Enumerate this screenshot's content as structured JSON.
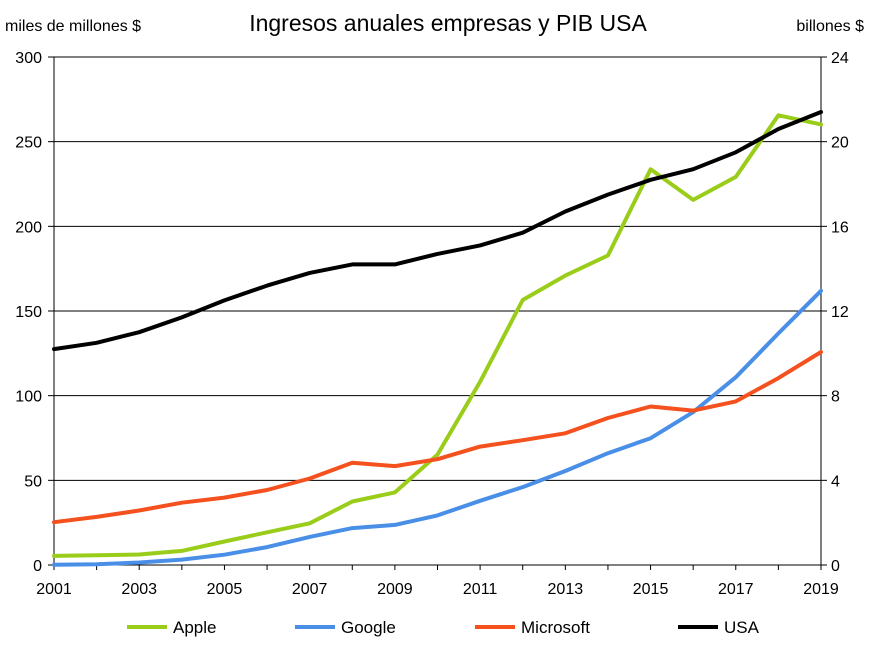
{
  "chart_data": {
    "type": "line",
    "title": "Ingresos anuales empresas y PIB USA",
    "y_left_label": "miles de millones $",
    "y_right_label": "billones $",
    "x": [
      2001,
      2002,
      2003,
      2004,
      2005,
      2006,
      2007,
      2008,
      2009,
      2010,
      2011,
      2012,
      2013,
      2014,
      2015,
      2016,
      2017,
      2018,
      2019
    ],
    "x_ticks": [
      "2001",
      "2003",
      "2005",
      "2007",
      "2009",
      "2011",
      "2013",
      "2015",
      "2017",
      "2019"
    ],
    "y_left_ticks": [
      "0",
      "50",
      "100",
      "150",
      "200",
      "250",
      "300"
    ],
    "y_right_ticks": [
      "0",
      "4",
      "8",
      "12",
      "16",
      "20",
      "24"
    ],
    "xlim": [
      2001,
      2019
    ],
    "ylim_left": [
      0,
      300
    ],
    "ylim_right": [
      0,
      24
    ],
    "grid": "horizontal",
    "legend_position": "bottom",
    "series": [
      {
        "name": "Apple",
        "axis": "left",
        "color": "#9ACD1A",
        "values": [
          5.4,
          5.7,
          6.2,
          8.3,
          13.9,
          19.3,
          24.6,
          37.5,
          42.9,
          65.2,
          108.2,
          156.5,
          170.9,
          182.8,
          233.7,
          215.6,
          229.2,
          265.6,
          260.2
        ]
      },
      {
        "name": "Google",
        "axis": "left",
        "color": "#4A8FE7",
        "values": [
          0.1,
          0.4,
          1.5,
          3.2,
          6.1,
          10.6,
          16.6,
          21.8,
          23.7,
          29.3,
          37.9,
          46.0,
          55.5,
          66.0,
          74.9,
          90.3,
          110.9,
          136.8,
          161.9
        ]
      },
      {
        "name": "Microsoft",
        "axis": "left",
        "color": "#F4511E",
        "values": [
          25.3,
          28.4,
          32.2,
          36.8,
          39.8,
          44.3,
          51.1,
          60.4,
          58.4,
          62.5,
          69.9,
          73.7,
          77.8,
          86.8,
          93.6,
          91.2,
          96.6,
          110.4,
          125.8
        ]
      },
      {
        "name": "USA",
        "axis": "right",
        "color": "#000000",
        "values": [
          10.2,
          10.5,
          11.0,
          11.7,
          12.5,
          13.2,
          13.8,
          14.2,
          14.2,
          14.7,
          15.1,
          15.7,
          16.7,
          17.5,
          18.2,
          18.7,
          19.5,
          20.6,
          21.4
        ]
      }
    ]
  }
}
